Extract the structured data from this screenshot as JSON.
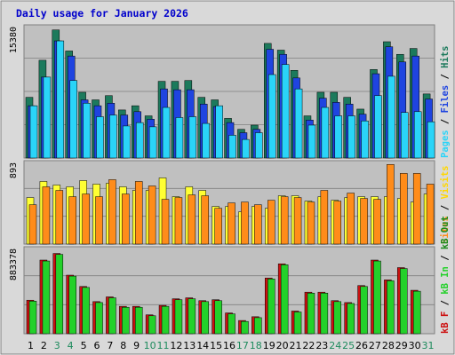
{
  "title": "Daily usage for January 2026",
  "colors": {
    "hits": "#1c7a5c",
    "files": "#1f44e0",
    "pages": "#2ad4f8",
    "visits": "#ffff33",
    "sites": "#ff8c1a",
    "kbin": "#23d12a",
    "kbout": "#1a8a1a",
    "kbf": "#cc1111",
    "plot_bg": "#c0c0c0",
    "frame": "#808080",
    "grid": "#808080",
    "weekend_tick": "#1c8a5c",
    "weekday_tick": "#000000"
  },
  "side_labels": {
    "top": [
      {
        "text": "Pages",
        "color": "#2ad4f8"
      },
      {
        "text": " / ",
        "color": "#000000"
      },
      {
        "text": "Files",
        "color": "#1f44e0"
      },
      {
        "text": " / ",
        "color": "#000000"
      },
      {
        "text": "Hits",
        "color": "#1c7a5c"
      }
    ],
    "middle": [
      {
        "text": "Sites",
        "color": "#ff8c1a"
      },
      {
        "text": " / ",
        "color": "#000000"
      },
      {
        "text": "Visits",
        "color": "#ffd700"
      }
    ],
    "bottom": [
      {
        "text": "kB F",
        "color": "#cc1111"
      },
      {
        "text": " / ",
        "color": "#000000"
      },
      {
        "text": "kB In",
        "color": "#23d12a"
      },
      {
        "text": " / ",
        "color": "#000000"
      },
      {
        "text": "kB Out",
        "color": "#1a8a1a"
      }
    ]
  },
  "chart_data": [
    {
      "type": "bar",
      "panel": "hits-files-pages",
      "ymax_label": "15380",
      "ylim": [
        0,
        15380
      ],
      "grid": true,
      "categories": [
        "1",
        "2",
        "3",
        "4",
        "5",
        "6",
        "7",
        "8",
        "9",
        "10",
        "11",
        "12",
        "13",
        "14",
        "15",
        "16",
        "17",
        "18",
        "19",
        "20",
        "21",
        "22",
        "23",
        "24",
        "25",
        "26",
        "27",
        "28",
        "29",
        "30",
        "31"
      ],
      "weekend_days": [
        3,
        4,
        10,
        11,
        17,
        18,
        24,
        25,
        31
      ],
      "series": [
        {
          "name": "Hits",
          "values": [
            7200,
            11600,
            15200,
            12700,
            7800,
            6900,
            7400,
            5700,
            6200,
            5000,
            9100,
            9100,
            9200,
            7200,
            6900,
            4700,
            3400,
            3900,
            13600,
            12800,
            10400,
            5000,
            7800,
            7800,
            7200,
            5800,
            10500,
            13800,
            12300,
            13000,
            7600
          ]
        },
        {
          "name": "Files",
          "values": [
            6200,
            9600,
            13900,
            12100,
            6900,
            6200,
            6500,
            5100,
            5500,
            4600,
            8200,
            8100,
            8100,
            6400,
            6100,
            4200,
            3000,
            3400,
            12900,
            12300,
            9500,
            4500,
            7100,
            6600,
            6400,
            5200,
            10000,
            13200,
            11400,
            12100,
            7000
          ]
        },
        {
          "name": "Pages",
          "values": [
            6200,
            9600,
            13900,
            9200,
            6500,
            4900,
            5100,
            3800,
            4200,
            3700,
            6000,
            4800,
            4900,
            4100,
            6200,
            2700,
            2200,
            3000,
            9900,
            11100,
            8200,
            3900,
            6000,
            5000,
            5000,
            4400,
            7400,
            9700,
            5400,
            5500,
            4300
          ]
        }
      ]
    },
    {
      "type": "bar",
      "panel": "visits-sites",
      "ymax_label": "893",
      "ylim": [
        0,
        893
      ],
      "grid": true,
      "categories": [
        "1",
        "2",
        "3",
        "4",
        "5",
        "6",
        "7",
        "8",
        "9",
        "10",
        "11",
        "12",
        "13",
        "14",
        "15",
        "16",
        "17",
        "18",
        "19",
        "20",
        "21",
        "22",
        "23",
        "24",
        "25",
        "26",
        "27",
        "28",
        "29",
        "30",
        "31"
      ],
      "series": [
        {
          "name": "Visits",
          "values": [
            520,
            700,
            660,
            640,
            710,
            670,
            680,
            640,
            600,
            600,
            740,
            530,
            640,
            600,
            420,
            420,
            360,
            420,
            400,
            540,
            540,
            480,
            530,
            490,
            520,
            530,
            530,
            530,
            510,
            470,
            560
          ]
        },
        {
          "name": "Sites",
          "values": [
            440,
            640,
            600,
            530,
            560,
            530,
            720,
            560,
            700,
            650,
            500,
            520,
            550,
            540,
            400,
            460,
            470,
            440,
            490,
            530,
            520,
            470,
            600,
            480,
            570,
            510,
            500,
            890,
            790,
            790,
            670
          ]
        }
      ]
    },
    {
      "type": "bar",
      "panel": "kbf-kbin-kbout",
      "ymax_label": "883378",
      "ylim": [
        0,
        883378
      ],
      "grid": true,
      "categories": [
        "1",
        "2",
        "3",
        "4",
        "5",
        "6",
        "7",
        "8",
        "9",
        "10",
        "11",
        "12",
        "13",
        "14",
        "15",
        "16",
        "17",
        "18",
        "19",
        "20",
        "21",
        "22",
        "23",
        "24",
        "25",
        "26",
        "27",
        "28",
        "29",
        "30",
        "31"
      ],
      "series": [
        {
          "name": "kB F",
          "values": [
            355000,
            780000,
            850000,
            620000,
            500000,
            340000,
            390000,
            290000,
            290000,
            200000,
            300000,
            370000,
            380000,
            350000,
            360000,
            220000,
            140000,
            180000,
            590000,
            740000,
            240000,
            440000,
            440000,
            350000,
            330000,
            510000,
            780000,
            570000,
            700000,
            460000,
            0
          ]
        },
        {
          "name": "kB In",
          "values": [
            345000,
            770000,
            840000,
            610000,
            490000,
            330000,
            380000,
            280000,
            280000,
            190000,
            290000,
            360000,
            370000,
            340000,
            350000,
            210000,
            130000,
            170000,
            580000,
            730000,
            230000,
            430000,
            430000,
            340000,
            320000,
            500000,
            770000,
            560000,
            690000,
            450000,
            0
          ]
        },
        {
          "name": "kB Out",
          "values": [
            360000,
            790000,
            860000,
            630000,
            510000,
            350000,
            400000,
            300000,
            300000,
            210000,
            310000,
            380000,
            390000,
            360000,
            370000,
            230000,
            150000,
            190000,
            600000,
            750000,
            250000,
            450000,
            450000,
            360000,
            340000,
            520000,
            790000,
            580000,
            710000,
            470000,
            0
          ]
        }
      ]
    }
  ]
}
